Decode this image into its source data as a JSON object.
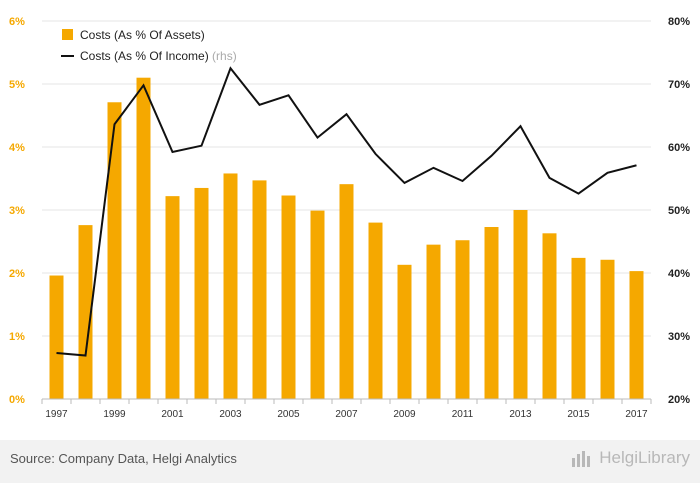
{
  "chart_data": {
    "type": "bar",
    "x": [
      1997,
      1998,
      1999,
      2000,
      2001,
      2002,
      2003,
      2004,
      2005,
      2006,
      2007,
      2008,
      2009,
      2010,
      2011,
      2012,
      2013,
      2014,
      2015,
      2016,
      2017
    ],
    "x_tick_labels": [
      "1997",
      "1999",
      "2001",
      "2003",
      "2005",
      "2007",
      "2009",
      "2011",
      "2013",
      "2015",
      "2017"
    ],
    "series": [
      {
        "name": "Costs (As % Of Assets)",
        "type": "bar",
        "axis": "left",
        "color": "#f5a800",
        "values": [
          1.96,
          2.76,
          4.71,
          5.1,
          3.22,
          3.35,
          3.58,
          3.47,
          3.23,
          2.99,
          3.41,
          2.8,
          2.13,
          2.45,
          2.52,
          2.73,
          3.0,
          2.63,
          2.24,
          2.21,
          2.03
        ]
      },
      {
        "name": "Costs (As % Of Income)",
        "note": "(rhs)",
        "type": "line",
        "axis": "right",
        "color": "#111111",
        "values": [
          27.3,
          26.9,
          63.6,
          69.8,
          59.2,
          60.2,
          72.5,
          66.7,
          68.2,
          61.5,
          65.2,
          58.9,
          54.3,
          56.7,
          54.6,
          58.6,
          63.3,
          55.1,
          52.6,
          55.9,
          57.1
        ]
      }
    ],
    "y_left": {
      "ylim": [
        0,
        6
      ],
      "ticks": [
        0,
        1,
        2,
        3,
        4,
        5,
        6
      ],
      "tick_labels": [
        "0%",
        "1%",
        "2%",
        "3%",
        "4%",
        "5%",
        "6%"
      ],
      "color": "#f5a800"
    },
    "y_right": {
      "ylim": [
        20,
        80
      ],
      "ticks": [
        20,
        30,
        40,
        50,
        60,
        70,
        80
      ],
      "tick_labels": [
        "20%",
        "30%",
        "40%",
        "50%",
        "60%",
        "70%",
        "80%"
      ],
      "color": "#222222"
    },
    "grid": true,
    "legend_position": "top-left"
  },
  "footer": {
    "source": "Source: Company Data, Helgi Analytics",
    "logo_part1": "Helgi",
    "logo_part2": "Library"
  }
}
